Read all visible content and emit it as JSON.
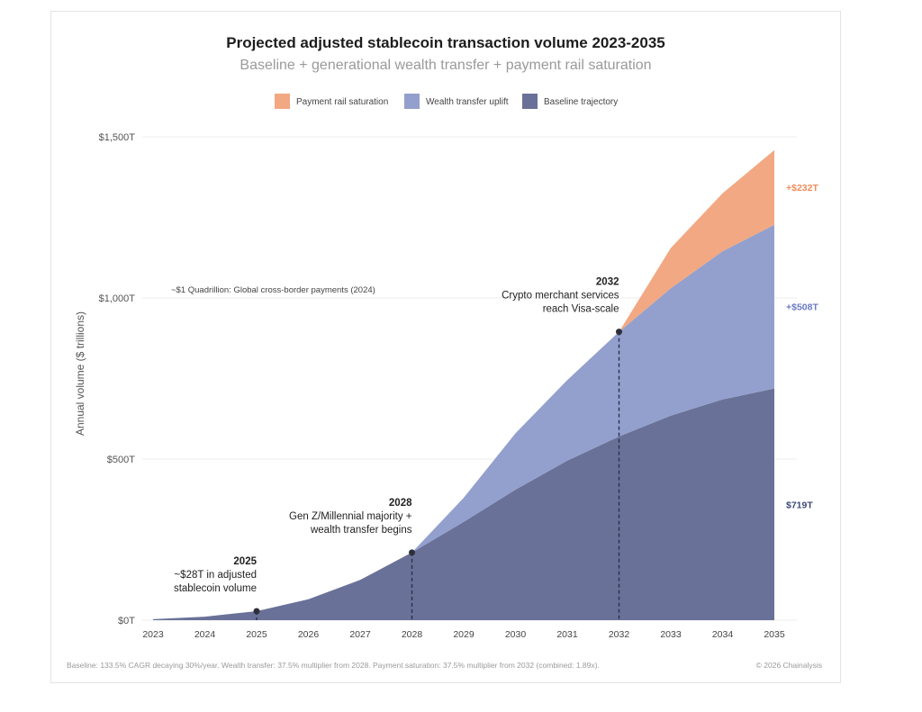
{
  "chart_data": {
    "type": "area",
    "title": "Projected adjusted stablecoin transaction volume 2023-2035",
    "subtitle": "Baseline + generational wealth transfer + payment rail saturation",
    "ylabel": "Annual volume ($ trillions)",
    "xlabel": "",
    "ylim": [
      0,
      1500
    ],
    "y_ticks": [
      {
        "value": 0,
        "label": "$0T"
      },
      {
        "value": 500,
        "label": "$500T"
      },
      {
        "value": 1000,
        "label": "$1,000T"
      },
      {
        "value": 1500,
        "label": "$1,500T"
      }
    ],
    "x": [
      2023,
      2024,
      2025,
      2026,
      2027,
      2028,
      2029,
      2030,
      2031,
      2032,
      2033,
      2034,
      2035
    ],
    "x_labels": [
      "2023",
      "2024",
      "2025",
      "2026",
      "2027",
      "2028",
      "2029",
      "2030",
      "2031",
      "2032",
      "2033",
      "2034",
      "2035"
    ],
    "stacked": true,
    "legend": [
      {
        "name": "Payment rail saturation",
        "color": "#f2a882"
      },
      {
        "name": "Wealth transfer uplift",
        "color": "#93a0cd"
      },
      {
        "name": "Baseline trajectory",
        "color": "#6a7198"
      }
    ],
    "series": [
      {
        "name": "Baseline trajectory",
        "color": "#6a7198",
        "values": [
          3,
          11,
          28,
          65,
          125,
          210,
          305,
          405,
          495,
          570,
          635,
          685,
          719
        ]
      },
      {
        "name": "Wealth transfer uplift",
        "color": "#93a0cd",
        "values": [
          0,
          0,
          0,
          0,
          0,
          0,
          75,
          175,
          250,
          325,
          395,
          460,
          508
        ]
      },
      {
        "name": "Payment rail saturation",
        "color": "#f2a882",
        "values": [
          0,
          0,
          0,
          0,
          0,
          0,
          0,
          0,
          0,
          0,
          125,
          180,
          232
        ]
      }
    ],
    "end_labels": [
      {
        "series": "Payment rail saturation",
        "text": "+$232T",
        "color": "#f08c5a"
      },
      {
        "series": "Wealth transfer uplift",
        "text": "+$508T",
        "color": "#6a7bc4"
      },
      {
        "series": "Baseline trajectory",
        "text": "$719T",
        "color": "#3e4778"
      }
    ],
    "reference_line": {
      "value": 1000,
      "label": "~$1 Quadrillion: Global cross-border payments (2024)"
    },
    "annotations": [
      {
        "year": 2025,
        "value": 28,
        "head": "2025",
        "lines": [
          "~$28T in adjusted",
          "stablecoin volume"
        ]
      },
      {
        "year": 2028,
        "value": 210,
        "head": "2028",
        "lines": [
          "Gen Z/Millennial majority +",
          "wealth transfer begins"
        ]
      },
      {
        "year": 2032,
        "value": 895,
        "head": "2032",
        "lines": [
          "Crypto merchant services",
          "reach Visa-scale"
        ]
      }
    ]
  },
  "footer": {
    "note": "Baseline: 133.5% CAGR decaying 30%/year. Wealth transfer: 37.5% multiplier from 2028. Payment saturation: 37.5% multiplier from 2032 (combined: 1.89x).",
    "credit": "© 2026 Chainalysis"
  }
}
